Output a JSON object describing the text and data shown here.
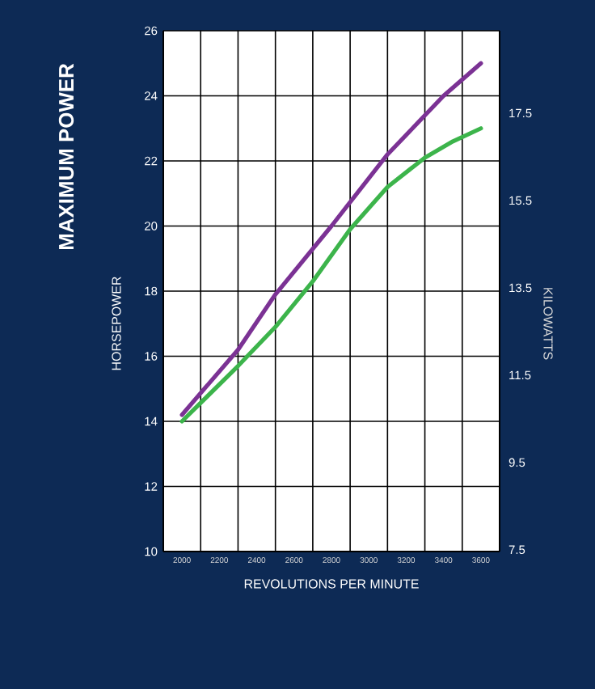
{
  "chart_data": {
    "type": "line",
    "title": "MAXIMUM POWER",
    "xlabel": "REVOLUTIONS PER MINUTE",
    "ylabel": "HORSEPOWER",
    "y2label": "KILOWATTS",
    "series": [
      {
        "color": "#3cb44b",
        "x": [
          2000,
          2300,
          2500,
          2700,
          2900,
          3100,
          3300,
          3450,
          3600
        ],
        "values": [
          14.0,
          15.7,
          16.9,
          18.3,
          19.9,
          21.2,
          22.1,
          22.6,
          23.0
        ]
      },
      {
        "color": "#7b3294",
        "x": [
          2000,
          2300,
          2500,
          2800,
          3100,
          3400,
          3600
        ],
        "values": [
          14.2,
          16.2,
          17.9,
          20.0,
          22.2,
          24.0,
          25.0
        ]
      }
    ],
    "xlim": [
      1900,
      3700
    ],
    "xticks": [
      2000,
      2200,
      2400,
      2600,
      2800,
      3000,
      3200,
      3400,
      3600,
      {
        "value": 2100,
        "label": null
      },
      {
        "value": 2300,
        "label": null
      },
      {
        "value": 2500,
        "label": null
      },
      {
        "value": 2700,
        "label": null
      },
      {
        "value": 2900,
        "label": null
      },
      {
        "value": 3100,
        "label": null
      },
      {
        "value": 3300,
        "label": null
      },
      {
        "value": 3500,
        "label": null
      }
    ],
    "ylim": [
      10,
      26
    ],
    "yticks": [
      10,
      12,
      14,
      16,
      18,
      20,
      22,
      24,
      26
    ],
    "y2lim": [
      7.46,
      19.39
    ],
    "y2ticks": [
      7.5,
      9.5,
      11.5,
      13.5,
      15.5,
      17.5
    ],
    "grid": true
  }
}
